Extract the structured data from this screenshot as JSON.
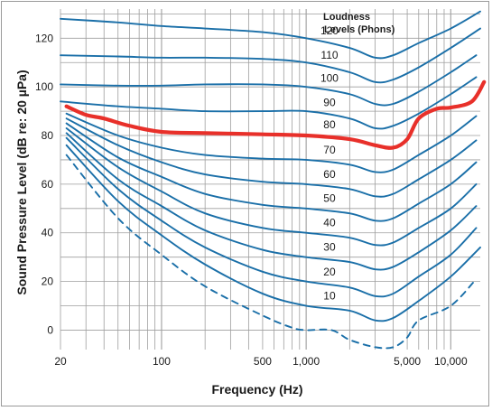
{
  "chart_data": {
    "type": "line",
    "title": "",
    "xlabel": "Frequency (Hz)",
    "ylabel": "Sound Pressure Level (dB re: 20 µPa)",
    "xscale": "log",
    "xlim": [
      20,
      16000
    ],
    "ylim": [
      -8,
      132
    ],
    "grid": true,
    "legend_title": "Loudness Levels (Phons)",
    "legend_title_lines": [
      "Loudness",
      "Levels (Phons)"
    ],
    "x_ticks": [
      20,
      100,
      500,
      1000,
      5000,
      10000
    ],
    "x_tick_labels": [
      "20",
      "100",
      "500",
      "1,000",
      "5,000",
      "10,000"
    ],
    "y_ticks": [
      0,
      20,
      40,
      60,
      80,
      100,
      120
    ],
    "y_tick_labels": [
      "0",
      "20",
      "40",
      "60",
      "80",
      "100",
      "120"
    ],
    "colors": {
      "curve": "#1a6fa8",
      "highlight": "#e8302a",
      "grid": "#9e9e9e"
    },
    "highlighted_series": "80",
    "series": [
      {
        "name": "120",
        "x": [
          20,
          50,
          100,
          200,
          500,
          1000,
          2000,
          3000,
          4000,
          6000,
          10000,
          16000
        ],
        "y": [
          128,
          126.5,
          125,
          124,
          122.5,
          120,
          116,
          112,
          113,
          118,
          124,
          131
        ]
      },
      {
        "name": "110",
        "x": [
          20,
          50,
          100,
          200,
          500,
          1000,
          2000,
          3000,
          4000,
          6000,
          10000,
          16000
        ],
        "y": [
          113,
          112.5,
          112,
          112,
          111.5,
          110,
          106,
          102,
          103,
          108,
          116,
          124
        ]
      },
      {
        "name": "100",
        "x": [
          20,
          50,
          100,
          200,
          500,
          1000,
          2000,
          3000,
          4000,
          6000,
          10000,
          15000
        ],
        "y": [
          101,
          100.5,
          100.5,
          101,
          101,
          100,
          97,
          93,
          93,
          98,
          106,
          113
        ]
      },
      {
        "name": "90",
        "x": [
          20,
          50,
          100,
          200,
          500,
          1000,
          2000,
          3000,
          4000,
          6000,
          10000,
          15000
        ],
        "y": [
          94,
          92,
          91,
          90,
          90,
          90,
          87,
          83,
          84,
          89,
          97,
          104
        ]
      },
      {
        "name": "80",
        "x": [
          22,
          30,
          40,
          60,
          100,
          200,
          500,
          1000,
          2000,
          3000,
          4000,
          5000,
          6000,
          8000,
          10000,
          14000,
          17000
        ],
        "y": [
          92,
          88.5,
          87,
          84,
          81.5,
          81,
          80.5,
          80,
          78.5,
          76,
          75,
          78.5,
          87,
          91,
          91.5,
          94,
          102
        ]
      },
      {
        "name": "70",
        "x": [
          22,
          50,
          100,
          200,
          500,
          1000,
          2000,
          3000,
          4000,
          6000,
          10000,
          15000
        ],
        "y": [
          89,
          80,
          75,
          72,
          70.5,
          70,
          68,
          65,
          66,
          72,
          80,
          88
        ]
      },
      {
        "name": "60",
        "x": [
          22,
          50,
          100,
          200,
          500,
          1000,
          2000,
          3000,
          4000,
          6000,
          10000,
          15000
        ],
        "y": [
          87,
          76,
          69,
          64,
          61,
          60,
          58,
          55,
          56,
          62,
          70,
          78
        ]
      },
      {
        "name": "50",
        "x": [
          22,
          50,
          100,
          200,
          500,
          1000,
          2000,
          3000,
          4000,
          6000,
          10000,
          15000
        ],
        "y": [
          85,
          71,
          63,
          56,
          51.5,
          50,
          48,
          45,
          46,
          52,
          60,
          69
        ]
      },
      {
        "name": "40",
        "x": [
          22,
          50,
          100,
          200,
          500,
          1000,
          2000,
          3000,
          4000,
          6000,
          10000,
          15000
        ],
        "y": [
          83,
          67,
          57,
          48,
          42,
          40,
          38,
          35,
          36,
          42,
          50,
          60
        ]
      },
      {
        "name": "30",
        "x": [
          22,
          50,
          100,
          200,
          500,
          1000,
          2000,
          3000,
          4000,
          6000,
          10000,
          15000
        ],
        "y": [
          81,
          62,
          51,
          41,
          33,
          30,
          28,
          25,
          26,
          32,
          41,
          51
        ]
      },
      {
        "name": "20",
        "x": [
          22,
          50,
          100,
          200,
          500,
          1000,
          2000,
          3000,
          4000,
          6000,
          10000,
          15000
        ],
        "y": [
          79,
          58,
          45,
          34,
          24,
          20,
          17.5,
          14,
          15,
          22,
          31,
          42
        ]
      },
      {
        "name": "10",
        "x": [
          22,
          50,
          100,
          200,
          500,
          1000,
          2000,
          3000,
          4000,
          6000,
          10000,
          16000
        ],
        "y": [
          76,
          53,
          39,
          27,
          15,
          10,
          8,
          4,
          5,
          12,
          22,
          34
        ]
      },
      {
        "name": "",
        "dashed": true,
        "x": [
          22,
          50,
          100,
          200,
          500,
          800,
          1000,
          1500,
          2000,
          3000,
          4000,
          5000,
          6000,
          10000,
          15000
        ],
        "y": [
          72,
          46,
          31,
          18,
          6,
          1,
          0,
          0,
          -4,
          -7,
          -7,
          -3,
          4,
          10,
          21
        ]
      }
    ]
  }
}
